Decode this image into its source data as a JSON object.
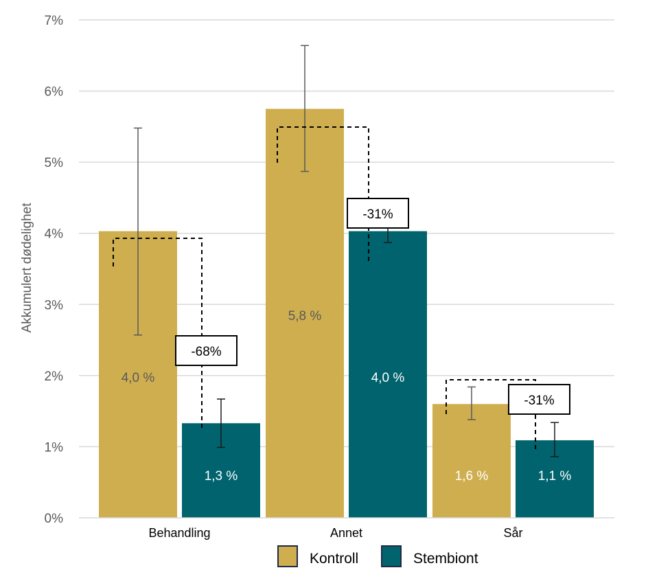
{
  "chart_data": {
    "type": "bar",
    "title": "",
    "xlabel": "",
    "ylabel": "Akkumulert dødelighet",
    "ylim": [
      0,
      7
    ],
    "yticks": [
      "0%",
      "1%",
      "2%",
      "3%",
      "4%",
      "5%",
      "6%",
      "7%"
    ],
    "grid": true,
    "legend_placement": "bottom",
    "categories": [
      "Behandling",
      "Annet",
      "Sår"
    ],
    "series": [
      {
        "name": "Kontroll",
        "color": "#CFAE50",
        "values": [
          4.03,
          5.75,
          1.6
        ],
        "error_low": [
          2.57,
          4.87,
          1.38
        ],
        "error_high": [
          5.48,
          6.64,
          1.84
        ],
        "labels": [
          "4,0 %",
          "5,8 %",
          "1,6 %"
        ],
        "label_colors": [
          "#595959",
          "#595959",
          "#FFFFFF"
        ]
      },
      {
        "name": "Stembiont",
        "color": "#00636E",
        "values": [
          1.33,
          4.03,
          1.09
        ],
        "error_low": [
          0.99,
          3.87,
          0.86
        ],
        "error_high": [
          1.67,
          4.19,
          1.34
        ],
        "labels": [
          "1,3 %",
          "4,0 %",
          "1,1 %"
        ],
        "label_colors": [
          "#FFFFFF",
          "#FFFFFF",
          "#FFFFFF"
        ]
      }
    ],
    "annotations": [
      "-68%",
      "-31%",
      "-31%"
    ]
  }
}
